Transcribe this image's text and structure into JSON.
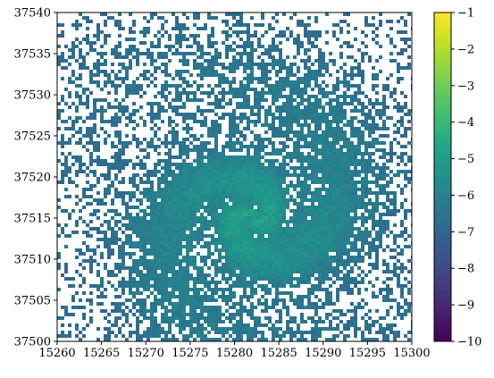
{
  "chart_data": {
    "type": "heatmap",
    "title": "",
    "xlabel": "",
    "ylabel": "",
    "xlim": [
      15260,
      15300
    ],
    "ylim": [
      37500,
      37540
    ],
    "x_ticks": [
      15260,
      15265,
      15270,
      15275,
      15280,
      15285,
      15290,
      15295,
      15300
    ],
    "y_ticks": [
      37500,
      37505,
      37510,
      37515,
      37520,
      37525,
      37530,
      37535,
      37540
    ],
    "x_tick_labels": [
      "15260",
      "15265",
      "15270",
      "15275",
      "15280",
      "15285",
      "15290",
      "15295",
      "15300"
    ],
    "y_tick_labels": [
      "37500",
      "37505",
      "37510",
      "37515",
      "37520",
      "37525",
      "37530",
      "37535",
      "37540"
    ],
    "colorbar": {
      "colormap": "viridis",
      "range": [
        -10,
        -1
      ],
      "ticks": [
        -1,
        -2,
        -3,
        -4,
        -5,
        -6,
        -7,
        -8,
        -9,
        -10
      ],
      "tick_labels": [
        "−1",
        "−2",
        "−3",
        "−4",
        "−5",
        "−6",
        "−7",
        "−8",
        "−9",
        "−10"
      ]
    },
    "feature": {
      "shape": "spiral",
      "center": [
        15282,
        37515
      ],
      "peak_value": -5,
      "background_value": -7,
      "empty_value_color": "#ffffff"
    },
    "grid": false
  }
}
